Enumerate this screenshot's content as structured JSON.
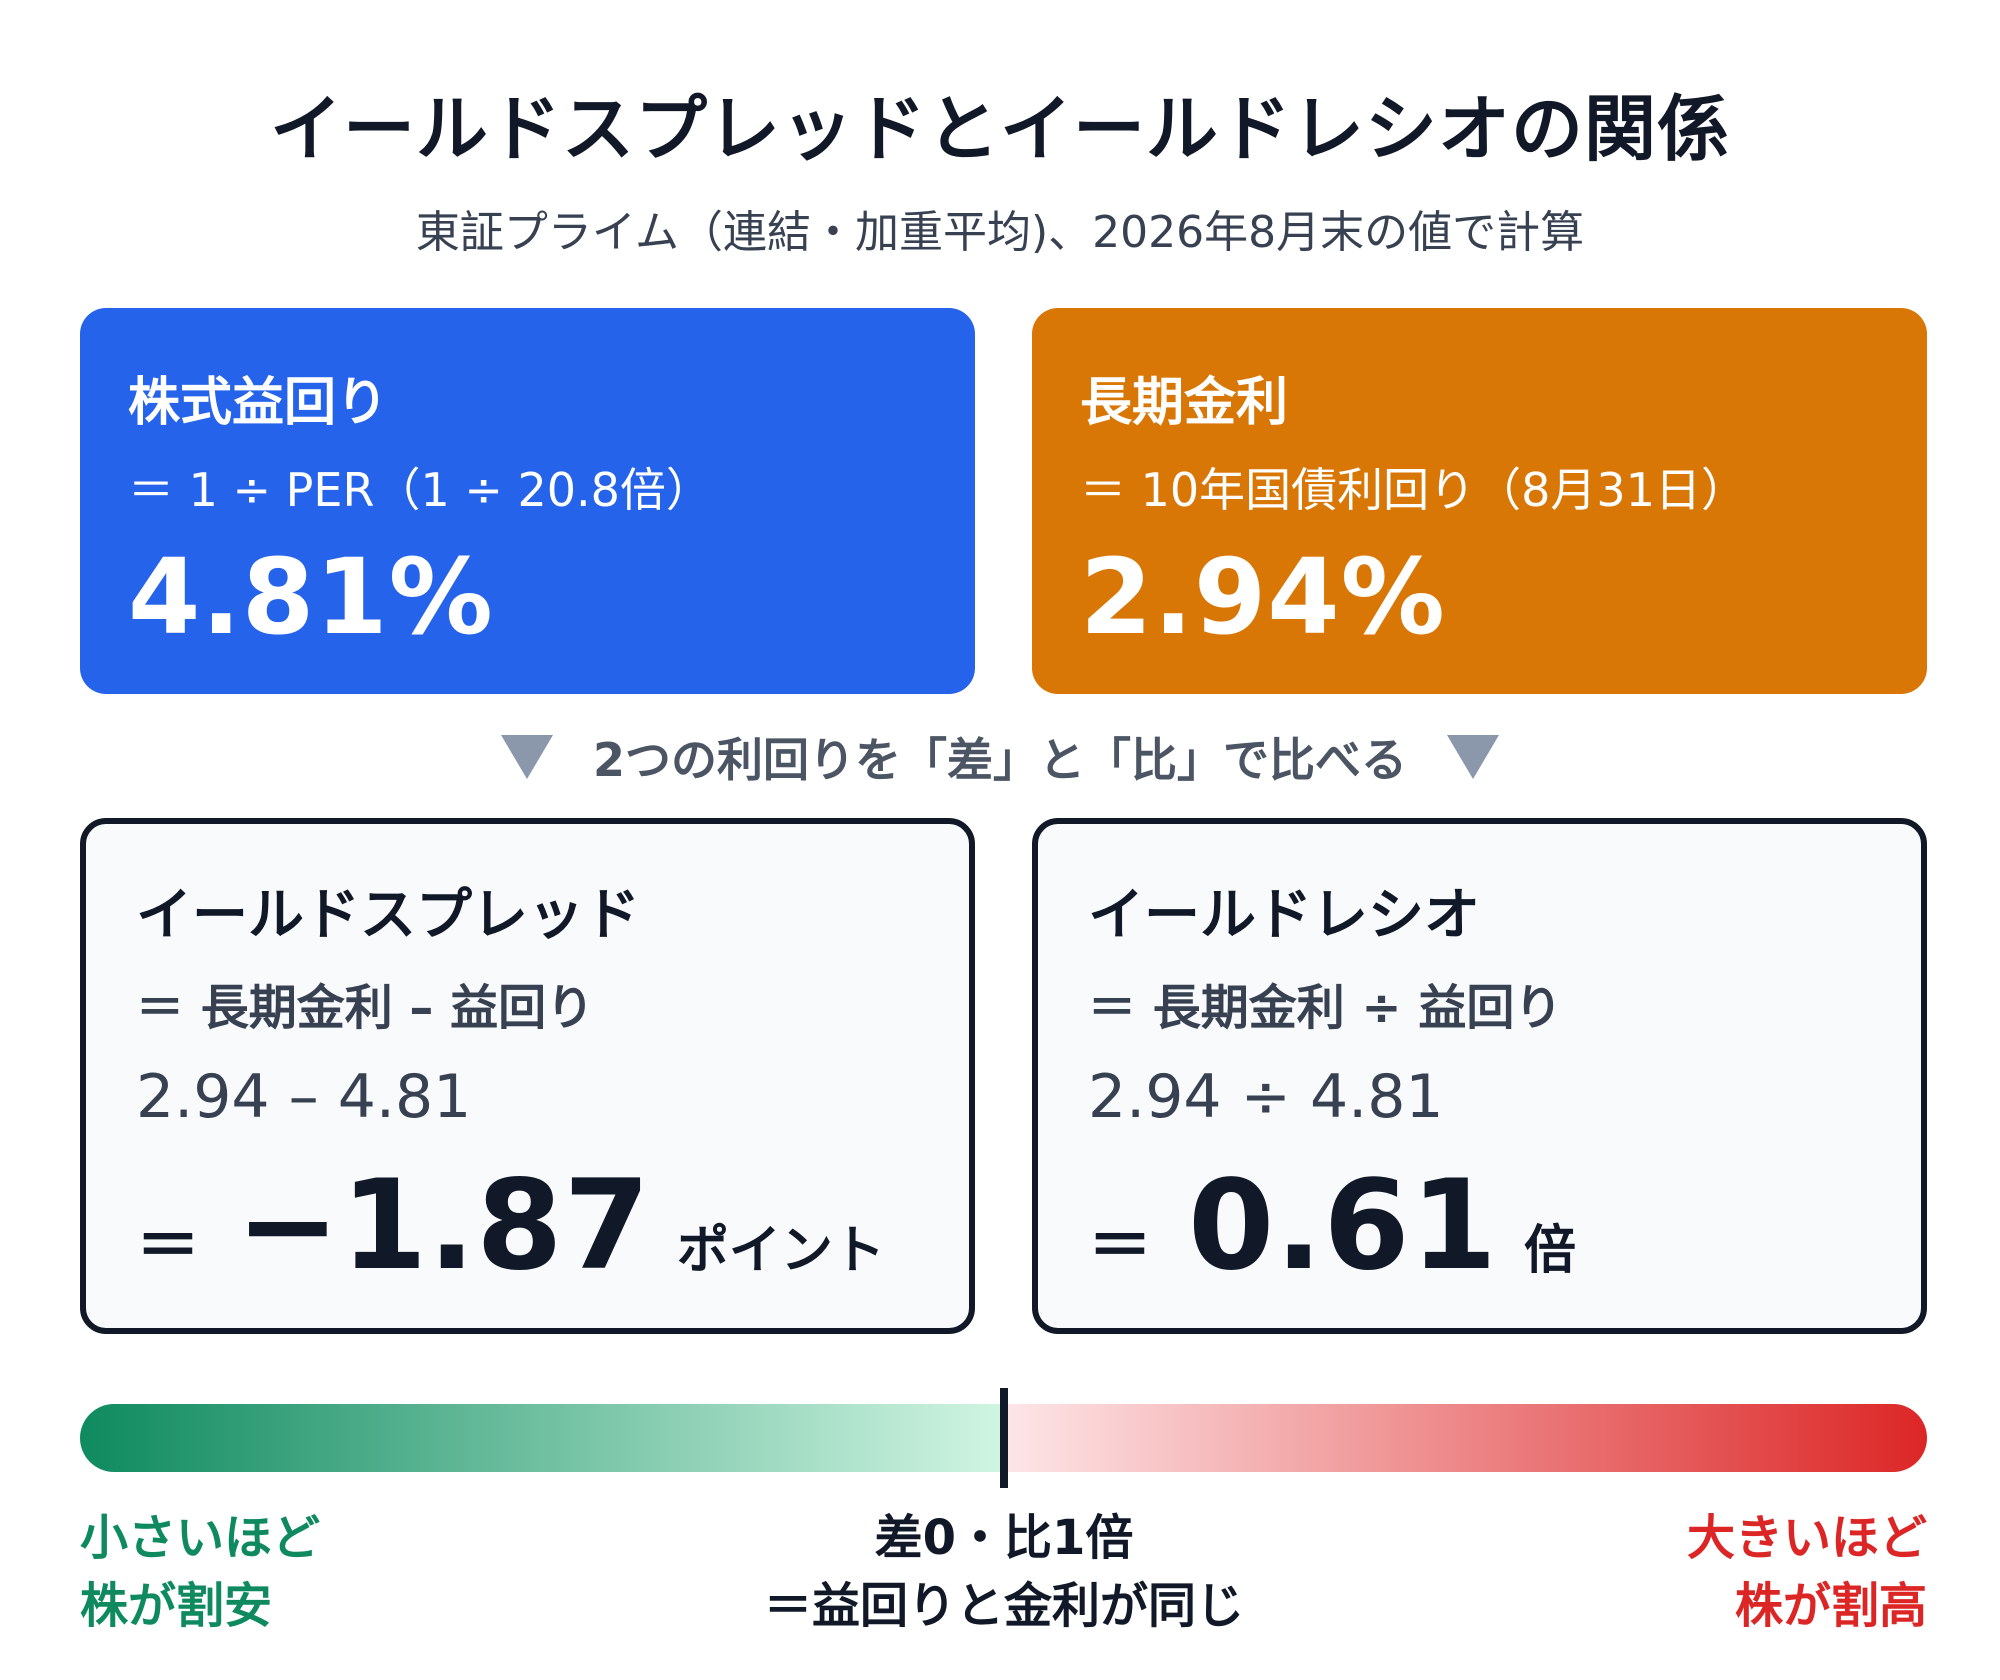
{
  "title": "イールドスプレッドとイールドレシオの関係",
  "subtitle": "東証プライム（連結・加重平均)、2026年8月末の値で計算",
  "colors": {
    "blue": "#2563eb",
    "orange": "#d97706",
    "green": "#0f8a5f",
    "red": "#dc2626",
    "dark": "#111827"
  },
  "earnings_yield": {
    "title": "株式益回り",
    "formula": "＝ 1 ÷ PER（1 ÷ 20.8倍）",
    "value": "4.81%"
  },
  "long_rate": {
    "title": "長期金利",
    "formula": "＝ 10年国債利回り（8月31日）",
    "value": "2.94%"
  },
  "bridge_text": "2つの利回りを「差」と「比」で比べる",
  "yield_spread": {
    "title": "イールドスプレッド",
    "formula": "＝ 長期金利 – 益回り",
    "calc": "2.94 – 4.81",
    "eq": "＝",
    "result": "−1.87",
    "unit": "ポイント"
  },
  "yield_ratio": {
    "title": "イールドレシオ",
    "formula": "＝ 長期金利 ÷ 益回り",
    "calc": "2.94 ÷ 4.81",
    "eq": "＝",
    "result": "0.61",
    "unit": "倍"
  },
  "scale": {
    "left_line1": "小さいほど",
    "left_line2": "株が割安",
    "center_line1": "差0・比1倍",
    "center_line2": "＝益回りと金利が同じ",
    "right_line1": "大きいほど",
    "right_line2": "株が割高"
  }
}
